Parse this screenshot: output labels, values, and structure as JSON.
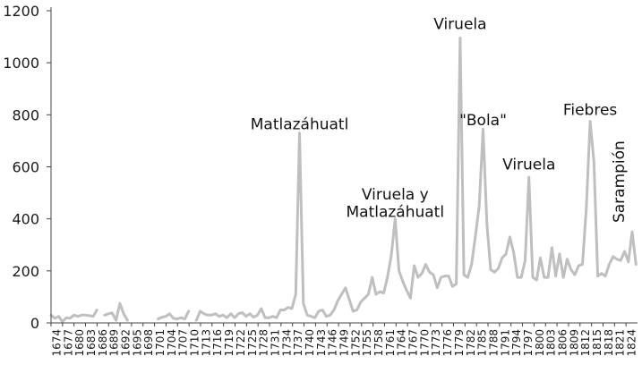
{
  "chart_data": {
    "type": "line",
    "title": "",
    "xlabel": "",
    "ylabel": "",
    "ylim": [
      0,
      1200
    ],
    "yticks": [
      0,
      200,
      400,
      600,
      800,
      1000,
      1200
    ],
    "xlim": [
      1674,
      1825
    ],
    "xtick_labels": [
      "1674",
      "1677",
      "1680",
      "1683",
      "1686",
      "1689",
      "1692",
      "1695",
      "1698",
      "1701",
      "1704",
      "1707",
      "1710",
      "1713",
      "1716",
      "1719",
      "1722",
      "1725",
      "1728",
      "1731",
      "1734",
      "1737",
      "1740",
      "1743",
      "1746",
      "1749",
      "1752",
      "1755",
      "1758",
      "1761",
      "1764",
      "1767",
      "1770",
      "1773",
      "1776",
      "1779",
      "1782",
      "1785",
      "1788",
      "1791",
      "1794",
      "1797",
      "1800",
      "1803",
      "1806",
      "1809",
      "1812",
      "1815",
      "1818",
      "1821",
      "1824"
    ],
    "grid": false,
    "line_color": "#bfbfbf",
    "series": [
      {
        "segments": [
          [
            [
              1674,
              30
            ],
            [
              1675,
              18
            ],
            [
              1676,
              25
            ],
            [
              1677,
              5
            ],
            [
              1678,
              20
            ],
            [
              1679,
              18
            ],
            [
              1680,
              30
            ],
            [
              1681,
              25
            ],
            [
              1682,
              30
            ],
            [
              1683,
              30
            ],
            [
              1684,
              28
            ],
            [
              1685,
              25
            ],
            [
              1686,
              50
            ]
          ],
          [
            [
              1688,
              30
            ],
            [
              1689,
              35
            ],
            [
              1690,
              38
            ],
            [
              1691,
              10
            ],
            [
              1692,
              75
            ],
            [
              1693,
              35
            ],
            [
              1694,
              10
            ]
          ],
          [
            [
              1702,
              15
            ],
            [
              1703,
              22
            ],
            [
              1704,
              25
            ],
            [
              1705,
              35
            ],
            [
              1706,
              18
            ],
            [
              1707,
              15
            ],
            [
              1708,
              20
            ],
            [
              1709,
              15
            ],
            [
              1710,
              45
            ]
          ],
          [
            [
              1712,
              10
            ],
            [
              1713,
              45
            ],
            [
              1714,
              35
            ],
            [
              1715,
              30
            ],
            [
              1716,
              30
            ],
            [
              1717,
              35
            ],
            [
              1718,
              25
            ],
            [
              1719,
              30
            ],
            [
              1720,
              20
            ],
            [
              1721,
              35
            ],
            [
              1722,
              20
            ],
            [
              1723,
              35
            ],
            [
              1724,
              40
            ],
            [
              1725,
              25
            ],
            [
              1726,
              35
            ],
            [
              1727,
              22
            ],
            [
              1728,
              30
            ],
            [
              1729,
              55
            ],
            [
              1730,
              20
            ],
            [
              1731,
              20
            ],
            [
              1732,
              25
            ],
            [
              1733,
              20
            ],
            [
              1734,
              50
            ],
            [
              1735,
              50
            ],
            [
              1736,
              60
            ],
            [
              1737,
              55
            ],
            [
              1738,
              110
            ],
            [
              1739,
              730
            ],
            [
              1740,
              75
            ],
            [
              1741,
              30
            ],
            [
              1742,
              25
            ],
            [
              1743,
              20
            ],
            [
              1744,
              45
            ],
            [
              1745,
              50
            ],
            [
              1746,
              25
            ],
            [
              1747,
              30
            ],
            [
              1748,
              50
            ],
            [
              1749,
              85
            ],
            [
              1750,
              110
            ],
            [
              1751,
              135
            ],
            [
              1752,
              90
            ],
            [
              1753,
              45
            ],
            [
              1754,
              50
            ],
            [
              1755,
              80
            ],
            [
              1756,
              95
            ],
            [
              1757,
              110
            ],
            [
              1758,
              175
            ],
            [
              1759,
              110
            ],
            [
              1760,
              120
            ],
            [
              1761,
              115
            ],
            [
              1762,
              175
            ],
            [
              1763,
              260
            ],
            [
              1764,
              400
            ],
            [
              1765,
              200
            ],
            [
              1766,
              160
            ],
            [
              1767,
              125
            ],
            [
              1768,
              95
            ],
            [
              1769,
              220
            ],
            [
              1770,
              175
            ],
            [
              1771,
              190
            ],
            [
              1772,
              225
            ],
            [
              1773,
              195
            ],
            [
              1774,
              185
            ],
            [
              1775,
              135
            ],
            [
              1776,
              175
            ],
            [
              1777,
              180
            ],
            [
              1778,
              180
            ],
            [
              1779,
              140
            ],
            [
              1780,
              150
            ],
            [
              1781,
              1095
            ],
            [
              1782,
              185
            ],
            [
              1783,
              175
            ],
            [
              1784,
              225
            ],
            [
              1785,
              335
            ],
            [
              1786,
              450
            ],
            [
              1787,
              745
            ],
            [
              1788,
              380
            ],
            [
              1789,
              205
            ],
            [
              1790,
              195
            ],
            [
              1791,
              210
            ],
            [
              1792,
              250
            ],
            [
              1793,
              265
            ],
            [
              1794,
              330
            ],
            [
              1795,
              270
            ],
            [
              1796,
              175
            ],
            [
              1797,
              175
            ],
            [
              1798,
              240
            ],
            [
              1799,
              560
            ],
            [
              1800,
              175
            ],
            [
              1801,
              165
            ],
            [
              1802,
              250
            ],
            [
              1803,
              175
            ],
            [
              1804,
              175
            ],
            [
              1805,
              290
            ],
            [
              1806,
              180
            ],
            [
              1807,
              265
            ],
            [
              1808,
              175
            ],
            [
              1809,
              245
            ],
            [
              1810,
              205
            ],
            [
              1811,
              185
            ],
            [
              1812,
              220
            ],
            [
              1813,
              225
            ],
            [
              1814,
              440
            ],
            [
              1815,
              775
            ],
            [
              1816,
              620
            ],
            [
              1817,
              180
            ],
            [
              1818,
              190
            ],
            [
              1819,
              180
            ],
            [
              1820,
              225
            ],
            [
              1821,
              255
            ],
            [
              1822,
              245
            ],
            [
              1823,
              240
            ],
            [
              1824,
              275
            ],
            [
              1825,
              235
            ],
            [
              1826,
              350
            ],
            [
              1827,
              225
            ]
          ]
        ]
      }
    ],
    "annotations": [
      {
        "lines": [
          "Matlazáhuatl"
        ],
        "x": 1739,
        "y": 745,
        "rotate": 0
      },
      {
        "lines": [
          "Viruela y",
          "Matlazáhuatl"
        ],
        "x": 1764,
        "y": 475,
        "rotate": 0
      },
      {
        "lines": [
          "Viruela"
        ],
        "x": 1781,
        "y": 1130,
        "rotate": 0
      },
      {
        "lines": [
          "\"Bola\""
        ],
        "x": 1787,
        "y": 760,
        "rotate": 0
      },
      {
        "lines": [
          "Viruela"
        ],
        "x": 1799,
        "y": 590,
        "rotate": 0
      },
      {
        "lines": [
          "Fiebres"
        ],
        "x": 1815,
        "y": 800,
        "rotate": 0
      },
      {
        "lines": [
          "Sarampión"
        ],
        "x": 1825,
        "y": 385,
        "rotate": -90
      }
    ]
  }
}
